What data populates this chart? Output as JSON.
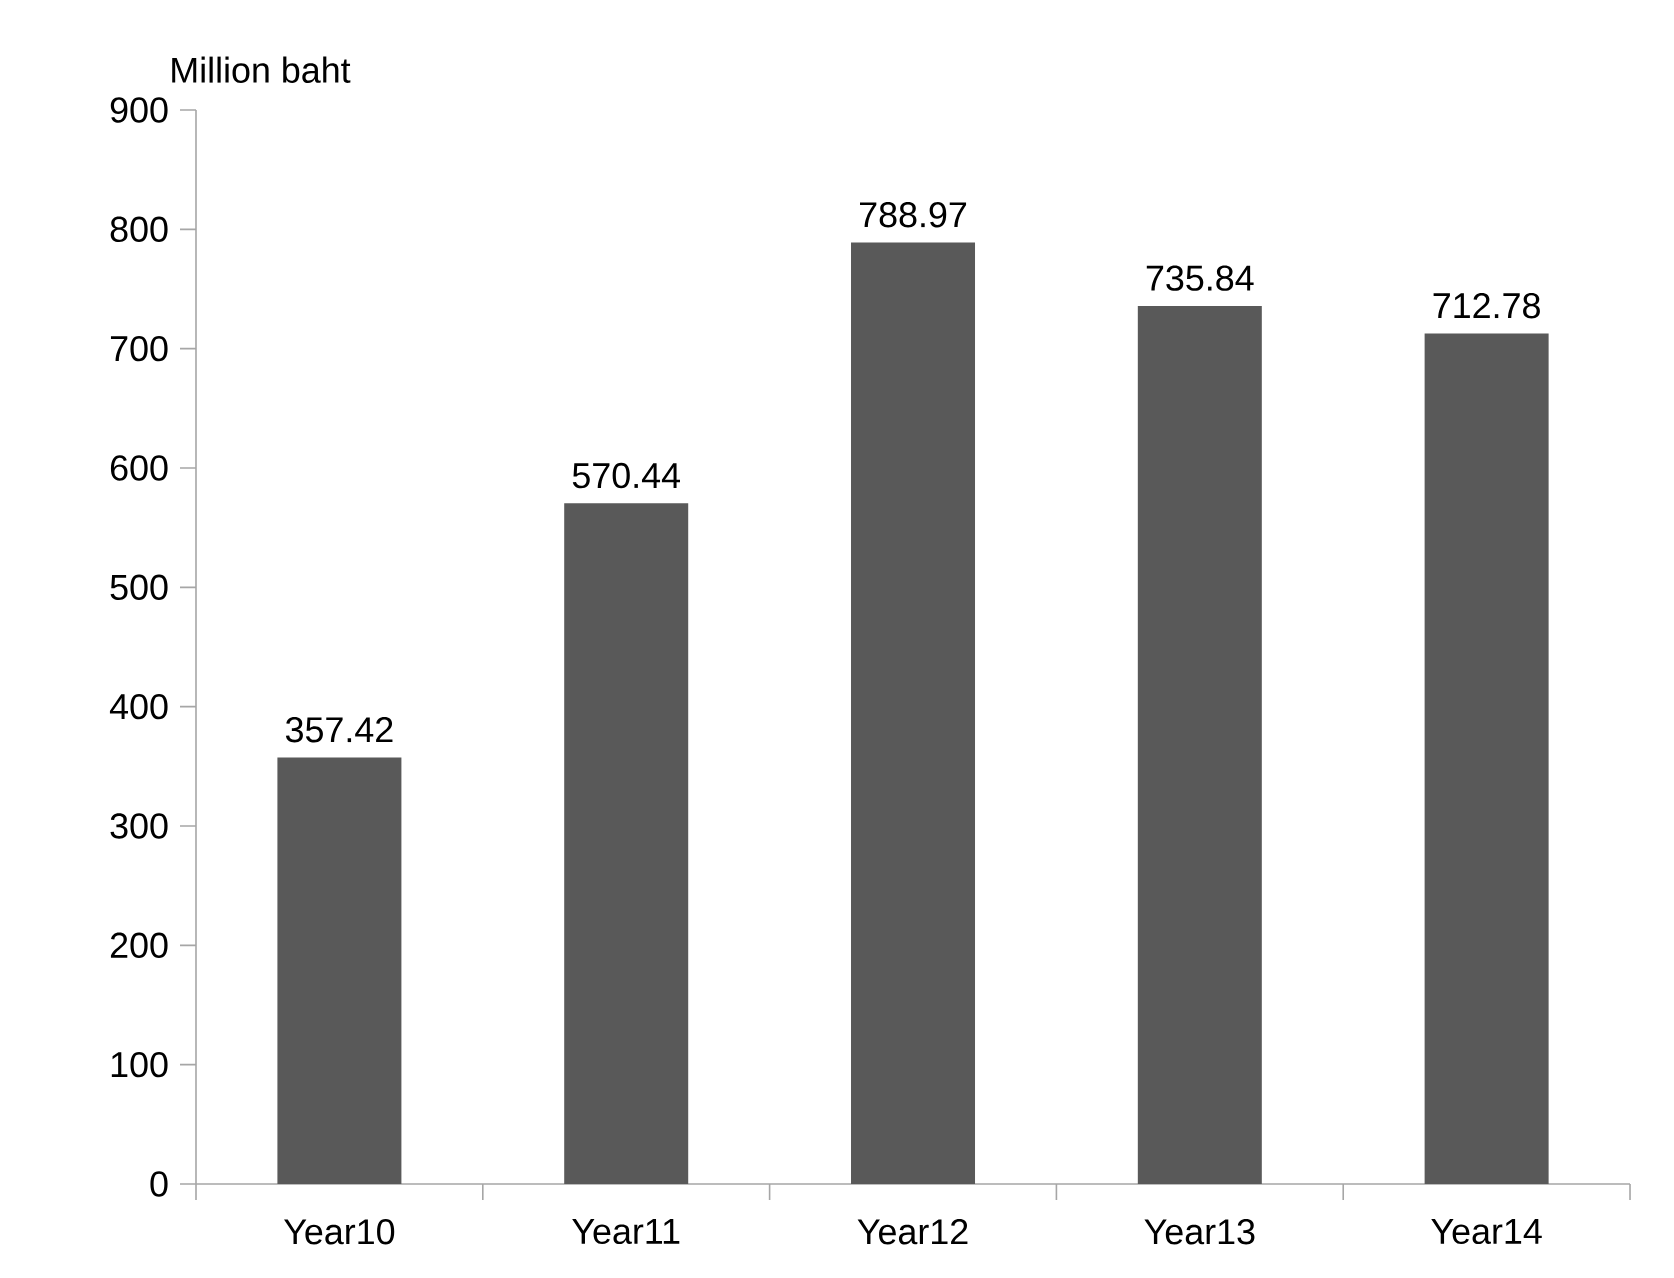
{
  "chart_data": {
    "type": "bar",
    "ylabel": "Million baht",
    "categories": [
      "Year10",
      "Year11",
      "Year12",
      "Year13",
      "Year14"
    ],
    "values": [
      357.42,
      570.44,
      788.97,
      735.84,
      712.78
    ],
    "color": "#595959",
    "ylim": [
      0,
      900
    ],
    "yticks": [
      0,
      100,
      200,
      300,
      400,
      500,
      600,
      700,
      800,
      900
    ],
    "data_labels": true
  }
}
